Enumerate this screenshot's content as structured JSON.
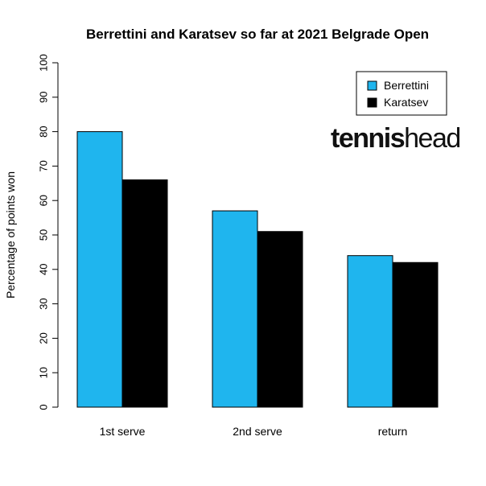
{
  "logo": {
    "part1": "tennis",
    "part2": "head"
  },
  "chart_data": {
    "type": "bar",
    "title": "Berrettini and Karatsev so far at 2021 Belgrade Open",
    "xlabel": "",
    "ylabel": "Percentage of points won",
    "ylim": [
      0,
      100
    ],
    "yticks": [
      0,
      10,
      20,
      30,
      40,
      50,
      60,
      70,
      80,
      90,
      100
    ],
    "categories": [
      "1st serve",
      "2nd serve",
      "return"
    ],
    "series": [
      {
        "name": "Berrettini",
        "color": "#1fb5ee",
        "values": [
          80,
          57,
          44
        ]
      },
      {
        "name": "Karatsev",
        "color": "#000000",
        "values": [
          66,
          51,
          42
        ]
      }
    ],
    "legend_position": "top-right",
    "grid": false
  }
}
